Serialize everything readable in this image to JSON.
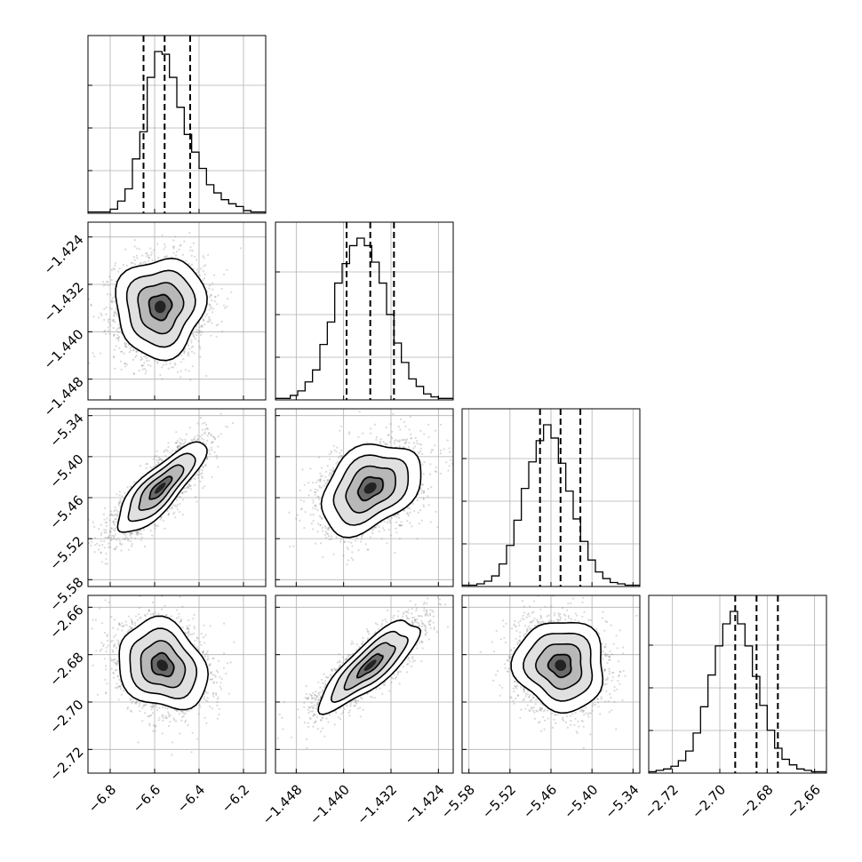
{
  "chart_data": {
    "type": "corner",
    "parameters": [
      {
        "index": 0,
        "range": [
          -6.9,
          -6.1
        ],
        "ticks": [
          {
            "v": -6.8,
            "label": "−6.8"
          },
          {
            "v": -6.6,
            "label": "−6.6"
          },
          {
            "v": -6.4,
            "label": "−6.4"
          },
          {
            "v": -6.2,
            "label": "−6.2"
          }
        ],
        "quantiles": [
          -6.65,
          -6.555,
          -6.44
        ],
        "hist_bins": {
          "lo": -6.9,
          "hi": -6.1,
          "counts": [
            1,
            1,
            1,
            3,
            9,
            18,
            40,
            60,
            100,
            119,
            117,
            100,
            78,
            58,
            45,
            33,
            21,
            15,
            10,
            7,
            5,
            2,
            1,
            1
          ]
        }
      },
      {
        "index": 1,
        "range": [
          -1.4515,
          -1.4215
        ],
        "ticks": [
          {
            "v": -1.448,
            "label": "−1.448"
          },
          {
            "v": -1.44,
            "label": "−1.440"
          },
          {
            "v": -1.432,
            "label": "−1.432"
          },
          {
            "v": -1.424,
            "label": "−1.424"
          }
        ],
        "quantiles": [
          -1.4395,
          -1.4355,
          -1.4315
        ],
        "hist_bins": {
          "lo": -1.4515,
          "hi": -1.4215,
          "counts": [
            1,
            1,
            3,
            6,
            12,
            20,
            37,
            52,
            78,
            91,
            103,
            108,
            103,
            92,
            78,
            57,
            38,
            25,
            14,
            9,
            4,
            2,
            1,
            1
          ]
        }
      },
      {
        "index": 2,
        "range": [
          -5.59,
          -5.33
        ],
        "ticks": [
          {
            "v": -5.58,
            "label": "−5.58"
          },
          {
            "v": -5.52,
            "label": "−5.52"
          },
          {
            "v": -5.46,
            "label": "−5.46"
          },
          {
            "v": -5.4,
            "label": "−5.40"
          },
          {
            "v": -5.34,
            "label": "−5.34"
          }
        ],
        "quantiles": [
          -5.476,
          -5.446,
          -5.417
        ],
        "hist_bins": {
          "lo": -5.59,
          "hi": -5.33,
          "counts": [
            1,
            1,
            2,
            4,
            8,
            17,
            31,
            50,
            74,
            94,
            110,
            122,
            112,
            93,
            72,
            51,
            34,
            20,
            11,
            6,
            3,
            2,
            1,
            1
          ]
        }
      },
      {
        "index": 3,
        "range": [
          -2.73,
          -2.655
        ],
        "ticks": [
          {
            "v": -2.72,
            "label": "−2.72"
          },
          {
            "v": -2.7,
            "label": "−2.70"
          },
          {
            "v": -2.68,
            "label": "−2.68"
          },
          {
            "v": -2.66,
            "label": "−2.66"
          }
        ],
        "quantiles": [
          -2.6935,
          -2.6845,
          -2.6755
        ],
        "hist_bins": {
          "lo": -2.73,
          "hi": -2.655,
          "counts": [
            1,
            2,
            3,
            5,
            9,
            16,
            29,
            48,
            71,
            92,
            108,
            117,
            108,
            92,
            70,
            49,
            31,
            18,
            10,
            6,
            3,
            2,
            1,
            1
          ]
        }
      }
    ],
    "pairs": [
      {
        "x": 0,
        "y": 1,
        "center": [
          -6.575,
          -1.4358
        ],
        "sd": [
          0.1,
          0.0042
        ],
        "rho": 0.05
      },
      {
        "x": 0,
        "y": 2,
        "center": [
          -6.575,
          -5.446
        ],
        "sd": [
          0.1,
          0.033
        ],
        "rho": 0.82
      },
      {
        "x": 1,
        "y": 2,
        "center": [
          -1.4355,
          -5.446
        ],
        "sd": [
          0.0042,
          0.033
        ],
        "rho": 0.35
      },
      {
        "x": 0,
        "y": 3,
        "center": [
          -6.565,
          -2.6845
        ],
        "sd": [
          0.1,
          0.0095
        ],
        "rho": -0.2
      },
      {
        "x": 1,
        "y": 3,
        "center": [
          -1.4355,
          -2.6845
        ],
        "sd": [
          0.0042,
          0.0095
        ],
        "rho": 0.82
      },
      {
        "x": 2,
        "y": 3,
        "center": [
          -5.446,
          -2.6845
        ],
        "sd": [
          0.033,
          0.0095
        ],
        "rho": -0.05
      }
    ],
    "contour_levels_sigma": [
      0.5,
      1.0,
      1.5,
      2.0
    ],
    "grid": true
  }
}
